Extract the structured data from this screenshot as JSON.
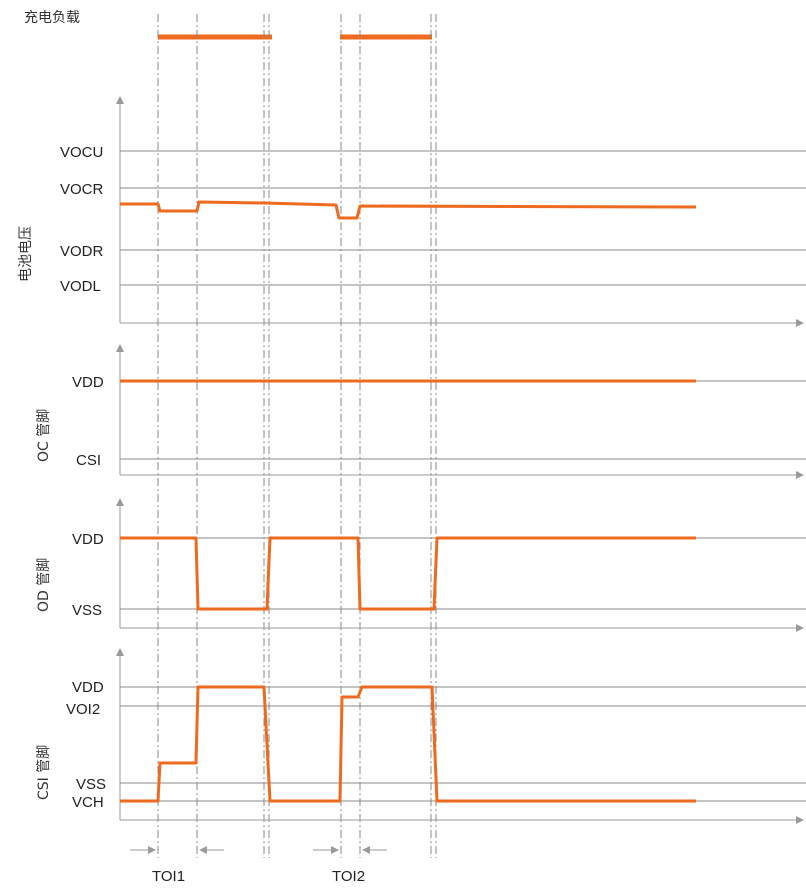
{
  "colors": {
    "signal": "#ee6a1e",
    "axis": "#9a9a9a",
    "grid": "#8a8a8a",
    "text": "#222222"
  },
  "load": {
    "title": "充电负载"
  },
  "panels": {
    "battery": {
      "ylabel": "电池电压",
      "levels": [
        "VOCU",
        "VOCR",
        "VODR",
        "VODL"
      ]
    },
    "oc": {
      "ylabel": "OC 管脚",
      "levels": [
        "VDD",
        "CSI"
      ]
    },
    "od": {
      "ylabel": "OD 管脚",
      "levels": [
        "VDD",
        "VSS"
      ]
    },
    "csi": {
      "ylabel": "CSI 管脚",
      "levels": [
        "VDD",
        "VOI2",
        "VSS",
        "VCH"
      ]
    }
  },
  "timing": {
    "t1_label": "TOI1",
    "t2_label": "TOI2"
  }
}
